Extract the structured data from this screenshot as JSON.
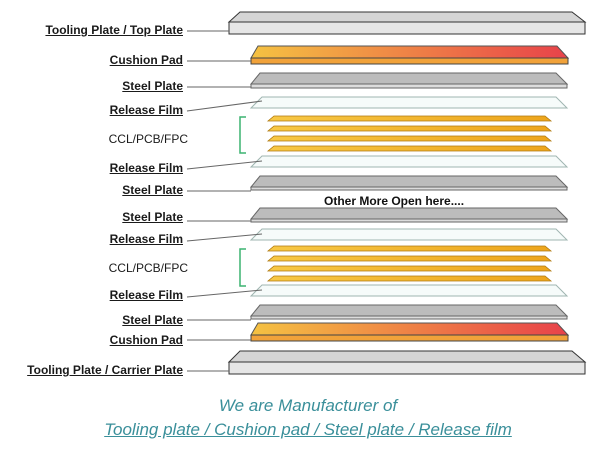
{
  "layers": [
    {
      "label": "Tooling Plate / Top Plate",
      "kind": "tooling",
      "underline": true
    },
    {
      "label": "Cushion Pad",
      "kind": "cushion",
      "underline": true
    },
    {
      "label": "Steel Plate",
      "kind": "steel",
      "underline": true
    },
    {
      "label": "Release Film",
      "kind": "film",
      "underline": true
    },
    {
      "label": "CCL/PCB/FPC",
      "kind": "ccl",
      "underline": false
    },
    {
      "label": "Release Film",
      "kind": "film",
      "underline": true
    },
    {
      "label": "Steel Plate",
      "kind": "steel",
      "underline": true
    },
    {
      "label": "Steel Plate",
      "kind": "steel",
      "underline": true
    },
    {
      "label": "Release Film",
      "kind": "film",
      "underline": true
    },
    {
      "label": "CCL/PCB/FPC",
      "kind": "ccl",
      "underline": false
    },
    {
      "label": "Release Film",
      "kind": "film",
      "underline": true
    },
    {
      "label": "Steel Plate",
      "kind": "steel",
      "underline": true
    },
    {
      "label": "Cushion Pad",
      "kind": "cushion",
      "underline": true
    },
    {
      "label": "Tooling Plate / Carrier Plate",
      "kind": "tooling",
      "underline": true
    }
  ],
  "middle_note": "Other More Open here....",
  "footer": {
    "line1": "We are Manufacturer of",
    "line2": "Tooling plate / Cushion pad / Steel plate / Release film"
  },
  "colors": {
    "footer_text": "#3a8f9a",
    "bracket": "#3cb371",
    "steel": "#b5b5b5",
    "cushion_start": "#f5c242",
    "cushion_end": "#e8424a",
    "ccl": "#f2b526",
    "film": "#f4faf8"
  }
}
